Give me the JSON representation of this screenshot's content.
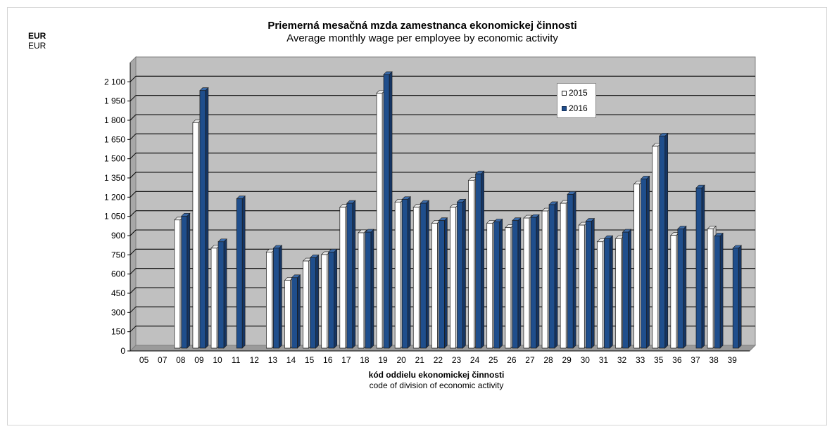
{
  "chart_data": {
    "type": "bar",
    "title": "Priemerná mesačná mzda zamestnanca ekonomickej činnosti",
    "subtitle": "Average monthly wage per employee by economic activity",
    "unit_label_sk": "EUR",
    "unit_label_en": "EUR",
    "xlabel": "kód oddielu ekonomickej činnosti",
    "xlabel_en": "code of division of economic activity",
    "ylim": [
      0,
      2250
    ],
    "yticks": [
      0,
      150,
      300,
      450,
      600,
      750,
      900,
      1050,
      1200,
      1350,
      1500,
      1650,
      1800,
      1950,
      2100
    ],
    "ytick_labels": [
      "0",
      "150",
      "300",
      "450",
      "600",
      "750",
      "900",
      "1 050",
      "1 200",
      "1 350",
      "1 500",
      "1 650",
      "1 800",
      "1 950",
      "2 100"
    ],
    "grid": true,
    "legend_position": "top-right",
    "categories": [
      "05",
      "07",
      "08",
      "09",
      "10",
      "11",
      "12",
      "13",
      "14",
      "15",
      "16",
      "17",
      "18",
      "19",
      "20",
      "21",
      "22",
      "23",
      "24",
      "25",
      "26",
      "27",
      "28",
      "29",
      "30",
      "31",
      "32",
      "33",
      "35",
      "36",
      "37",
      "38",
      "39"
    ],
    "series": [
      {
        "name": "2015",
        "color": "#ffffff",
        "values": [
          0,
          0,
          1000,
          1760,
          780,
          0,
          0,
          750,
          530,
          680,
          730,
          1100,
          900,
          1990,
          1140,
          1100,
          975,
          1100,
          1310,
          975,
          940,
          1015,
          1070,
          1130,
          960,
          830,
          855,
          1280,
          1575,
          880,
          0,
          930,
          0
        ]
      },
      {
        "name": "2016",
        "color": "#1f4e8c",
        "values": [
          0,
          0,
          1030,
          2010,
          830,
          1165,
          0,
          780,
          550,
          705,
          750,
          1130,
          905,
          2135,
          1160,
          1130,
          995,
          1140,
          1360,
          985,
          995,
          1020,
          1120,
          1200,
          990,
          855,
          905,
          1320,
          1655,
          930,
          1250,
          875,
          780
        ]
      }
    ]
  }
}
